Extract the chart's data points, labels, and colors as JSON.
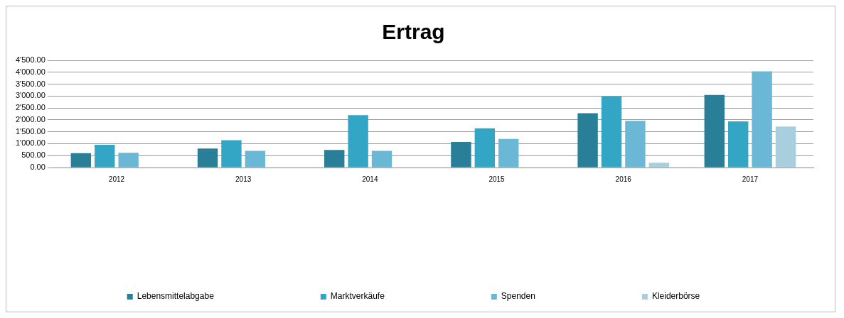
{
  "chart_data": {
    "type": "bar",
    "title": "Ertrag",
    "categories": [
      "2012",
      "2013",
      "2014",
      "2015",
      "2016",
      "2017"
    ],
    "series": [
      {
        "name": "Lebensmittelabgabe",
        "color": "#2a7f98",
        "values": [
          600,
          800,
          740,
          1070,
          2280,
          3050
        ]
      },
      {
        "name": "Marktverkäufe",
        "color": "#33a6c6",
        "values": [
          950,
          1150,
          2200,
          1650,
          2980,
          1940
        ]
      },
      {
        "name": "Spenden",
        "color": "#6ab8d6",
        "values": [
          620,
          700,
          700,
          1200,
          1960,
          4040
        ]
      },
      {
        "name": "Kleiderbörse",
        "color": "#a9cfdf",
        "values": [
          null,
          null,
          null,
          null,
          200,
          1720
        ]
      }
    ],
    "ylim": [
      0,
      4500
    ],
    "yticks": [
      {
        "value": 0,
        "label": "0.00"
      },
      {
        "value": 500,
        "label": "500.00"
      },
      {
        "value": 1000,
        "label": "1'000.00"
      },
      {
        "value": 1500,
        "label": "1'500.00"
      },
      {
        "value": 2000,
        "label": "2'000.00"
      },
      {
        "value": 2500,
        "label": "2'500.00"
      },
      {
        "value": 3000,
        "label": "3'000.00"
      },
      {
        "value": 3500,
        "label": "3'500.00"
      },
      {
        "value": 4000,
        "label": "4'000.00"
      },
      {
        "value": 4500,
        "label": "4'500.00"
      }
    ],
    "grid": "y",
    "legend": "bottom"
  }
}
